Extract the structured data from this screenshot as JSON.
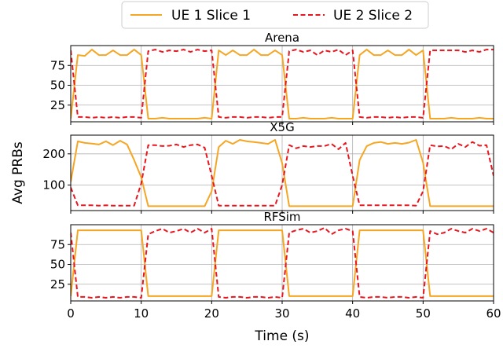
{
  "chart_data": {
    "type": "line",
    "shared": {
      "xlabel": "Time (s)",
      "ylabel": "Avg PRBs",
      "xlim": [
        0,
        60
      ],
      "xticks": [
        0,
        10,
        20,
        30,
        40,
        50,
        60
      ],
      "grid": true,
      "legend": {
        "placement": "top-center",
        "columns": 2
      }
    },
    "legend": [
      {
        "name": "UE 1 Slice 1",
        "color": "#f5a623",
        "dash": "solid"
      },
      {
        "name": "UE 2 Slice 2",
        "color": "#e8161e",
        "dash": "dashed"
      }
    ],
    "panels": [
      {
        "title": "Arena",
        "ylim": [
          4,
          100
        ],
        "yticks": [
          25,
          50,
          75
        ],
        "series": [
          {
            "name": "UE 1 Slice 1",
            "x": [
              0,
              1,
              2,
              3,
              4,
              5,
              6,
              7,
              8,
              9,
              10,
              11,
              12,
              13,
              14,
              15,
              16,
              17,
              18,
              19,
              20,
              21,
              22,
              23,
              24,
              25,
              26,
              27,
              28,
              29,
              30,
              31,
              32,
              33,
              34,
              35,
              36,
              37,
              38,
              39,
              40,
              41,
              42,
              43,
              44,
              45,
              46,
              47,
              48,
              49,
              50,
              51,
              52,
              53,
              54,
              55,
              56,
              57,
              58,
              59,
              60
            ],
            "y": [
              8,
              88,
              87,
              95,
              88,
              88,
              94,
              88,
              88,
              95,
              88,
              8,
              8,
              9,
              8,
              8,
              8,
              8,
              8,
              9,
              8,
              94,
              88,
              94,
              88,
              88,
              95,
              88,
              88,
              94,
              88,
              8,
              8,
              9,
              8,
              8,
              8,
              9,
              8,
              8,
              8,
              88,
              95,
              88,
              88,
              94,
              88,
              88,
              95,
              88,
              94,
              8,
              8,
              8,
              9,
              8,
              8,
              8,
              9,
              8,
              8
            ]
          },
          {
            "name": "UE 2 Slice 2",
            "x": [
              0,
              1,
              2,
              3,
              4,
              5,
              6,
              7,
              8,
              9,
              10,
              11,
              12,
              13,
              14,
              15,
              16,
              17,
              18,
              19,
              20,
              21,
              22,
              23,
              24,
              25,
              26,
              27,
              28,
              29,
              30,
              31,
              32,
              33,
              34,
              35,
              36,
              37,
              38,
              39,
              40,
              41,
              42,
              43,
              44,
              45,
              46,
              47,
              48,
              49,
              50,
              51,
              52,
              53,
              54,
              55,
              56,
              57,
              58,
              59,
              60
            ],
            "y": [
              94,
              10,
              10,
              9,
              10,
              9,
              10,
              9,
              10,
              10,
              9,
              93,
              95,
              92,
              94,
              93,
              95,
              92,
              95,
              93,
              94,
              10,
              9,
              10,
              10,
              9,
              10,
              10,
              9,
              10,
              10,
              93,
              95,
              92,
              94,
              88,
              94,
              92,
              95,
              88,
              94,
              10,
              9,
              10,
              10,
              9,
              10,
              9,
              10,
              10,
              9,
              94,
              94,
              94,
              94,
              94,
              92,
              94,
              92,
              95,
              95
            ]
          }
        ]
      },
      {
        "title": "X5G",
        "ylim": [
          18,
          260
        ],
        "yticks": [
          100,
          200
        ],
        "series": [
          {
            "name": "UE 1 Slice 1",
            "x": [
              0,
              1,
              2,
              3,
              4,
              5,
              6,
              7,
              8,
              9,
              10,
              11,
              12,
              13,
              14,
              15,
              16,
              17,
              18,
              19,
              20,
              21,
              22,
              23,
              24,
              25,
              26,
              27,
              28,
              29,
              30,
              31,
              32,
              33,
              34,
              35,
              36,
              37,
              38,
              39,
              40,
              41,
              42,
              43,
              44,
              45,
              46,
              47,
              48,
              49,
              50,
              51,
              52,
              53,
              54,
              55,
              56,
              57,
              58,
              59,
              60
            ],
            "y": [
              110,
              240,
              235,
              233,
              230,
              240,
              228,
              242,
              230,
              180,
              125,
              32,
              32,
              32,
              32,
              32,
              32,
              32,
              32,
              32,
              80,
              222,
              242,
              232,
              245,
              240,
              238,
              235,
              232,
              245,
              170,
              32,
              32,
              32,
              32,
              32,
              32,
              32,
              32,
              32,
              32,
              180,
              225,
              235,
              238,
              232,
              235,
              232,
              236,
              245,
              172,
              32,
              32,
              32,
              32,
              32,
              32,
              32,
              32,
              32,
              32
            ]
          },
          {
            "name": "UE 2 Slice 2",
            "x": [
              0,
              1,
              2,
              3,
              4,
              5,
              6,
              7,
              8,
              9,
              10,
              11,
              12,
              13,
              14,
              15,
              16,
              17,
              18,
              19,
              20,
              21,
              22,
              23,
              24,
              25,
              26,
              27,
              28,
              29,
              30,
              31,
              32,
              33,
              34,
              35,
              36,
              37,
              38,
              39,
              40,
              41,
              42,
              43,
              44,
              45,
              46,
              47,
              48,
              49,
              50,
              51,
              52,
              53,
              54,
              55,
              56,
              57,
              58,
              59,
              60
            ],
            "y": [
              92,
              35,
              35,
              35,
              34,
              35,
              34,
              34,
              34,
              34,
              105,
              228,
              228,
              225,
              226,
              230,
              222,
              228,
              230,
              220,
              130,
              34,
              34,
              34,
              34,
              34,
              34,
              34,
              34,
              34,
              100,
              228,
              218,
              225,
              222,
              225,
              225,
              232,
              215,
              235,
              130,
              35,
              35,
              35,
              35,
              35,
              35,
              35,
              35,
              34,
              80,
              228,
              224,
              225,
              215,
              232,
              222,
              238,
              226,
              228,
              130
            ]
          }
        ]
      },
      {
        "title": "RFSim",
        "ylim": [
          4,
          100
        ],
        "yticks": [
          25,
          50,
          75
        ],
        "series": [
          {
            "name": "UE 1 Slice 1",
            "x": [
              0,
              1,
              2,
              3,
              4,
              5,
              6,
              7,
              8,
              9,
              10,
              11,
              12,
              13,
              14,
              15,
              16,
              17,
              18,
              19,
              20,
              21,
              22,
              23,
              24,
              25,
              26,
              27,
              28,
              29,
              30,
              31,
              32,
              33,
              34,
              35,
              36,
              37,
              38,
              39,
              40,
              41,
              42,
              43,
              44,
              45,
              46,
              47,
              48,
              49,
              50,
              51,
              52,
              53,
              54,
              55,
              56,
              57,
              58,
              59,
              60
            ],
            "y": [
              10,
              93,
              93,
              93,
              93,
              93,
              93,
              93,
              93,
              93,
              93,
              10,
              10,
              10,
              10,
              10,
              10,
              10,
              10,
              10,
              10,
              93,
              93,
              93,
              93,
              93,
              93,
              93,
              93,
              93,
              93,
              10,
              10,
              10,
              10,
              10,
              10,
              10,
              10,
              10,
              10,
              93,
              93,
              93,
              93,
              93,
              93,
              93,
              93,
              93,
              93,
              10,
              10,
              10,
              10,
              10,
              10,
              10,
              10,
              10,
              10
            ]
          },
          {
            "name": "UE 2 Slice 2",
            "x": [
              0,
              1,
              2,
              3,
              4,
              5,
              6,
              7,
              8,
              9,
              10,
              11,
              12,
              13,
              14,
              15,
              16,
              17,
              18,
              19,
              20,
              21,
              22,
              23,
              24,
              25,
              26,
              27,
              28,
              29,
              30,
              31,
              32,
              33,
              34,
              35,
              36,
              37,
              38,
              39,
              40,
              41,
              42,
              43,
              44,
              45,
              46,
              47,
              48,
              49,
              50,
              51,
              52,
              53,
              54,
              55,
              56,
              57,
              58,
              59,
              60
            ],
            "y": [
              90,
              9,
              9,
              8,
              9,
              8,
              9,
              8,
              9,
              9,
              8,
              88,
              92,
              95,
              90,
              92,
              95,
              90,
              95,
              90,
              95,
              9,
              8,
              9,
              9,
              8,
              9,
              9,
              8,
              9,
              8,
              90,
              93,
              95,
              90,
              92,
              96,
              88,
              93,
              95,
              92,
              9,
              8,
              9,
              9,
              8,
              9,
              9,
              8,
              9,
              8,
              92,
              88,
              90,
              95,
              92,
              90,
              95,
              92,
              95,
              90
            ]
          }
        ]
      }
    ]
  }
}
